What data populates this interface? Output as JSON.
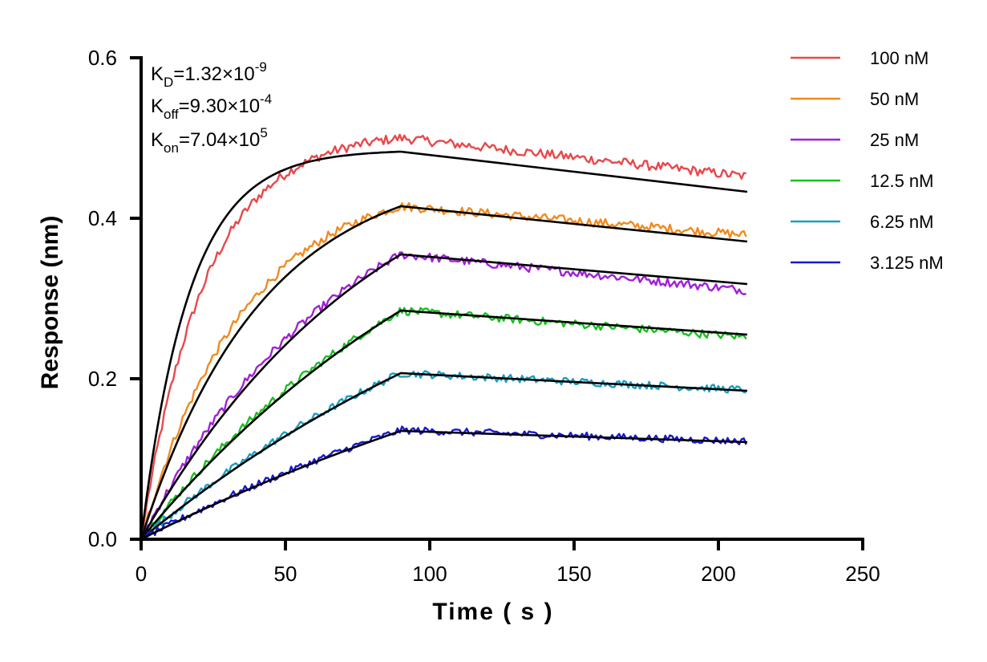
{
  "chart_data": {
    "type": "line",
    "title": "",
    "xlabel": "Time ( s )",
    "ylabel": "Response (nm)",
    "xlim": [
      0,
      250
    ],
    "ylim": [
      0,
      0.6
    ],
    "x_ticks": [
      "0",
      "50",
      "100",
      "150",
      "200",
      "250"
    ],
    "y_ticks": [
      "0.0",
      "0.2",
      "0.4",
      "0.6"
    ],
    "grid": false,
    "legend_position": "top-right",
    "annotations": [
      {
        "sym": "K",
        "sub": "D",
        "val": "=1.32×10",
        "exp": "-9"
      },
      {
        "sym": "K",
        "sub": "off",
        "val": "=9.30×10",
        "exp": "-4"
      },
      {
        "sym": "K",
        "sub": "on",
        "val": "=7.04×10",
        "exp": "5"
      }
    ],
    "association_end": 90,
    "dissociation_end": 210,
    "series": [
      {
        "name": "100 nM",
        "color": "#e8484a",
        "peak": 0.5,
        "end": 0.452,
        "fit_peak": 0.483,
        "fit_end": 0.433,
        "curve_shape": 0.045
      },
      {
        "name": "50 nM",
        "color": "#f28a1e",
        "peak": 0.415,
        "end": 0.379,
        "fit_peak": 0.415,
        "fit_end": 0.371,
        "curve_shape": 0.028
      },
      {
        "name": "25 nM",
        "color": "#a020d8",
        "peak": 0.355,
        "end": 0.31,
        "fit_peak": 0.355,
        "fit_end": 0.318,
        "curve_shape": 0.014
      },
      {
        "name": "12.5 nM",
        "color": "#18c020",
        "peak": 0.285,
        "end": 0.252,
        "fit_peak": 0.285,
        "fit_end": 0.255,
        "curve_shape": 0.009
      },
      {
        "name": "6.25 nM",
        "color": "#18a0c0",
        "peak": 0.207,
        "end": 0.186,
        "fit_peak": 0.207,
        "fit_end": 0.185,
        "curve_shape": 0.007
      },
      {
        "name": "3.125 nM",
        "color": "#1818d0",
        "peak": 0.136,
        "end": 0.122,
        "fit_peak": 0.135,
        "fit_end": 0.121,
        "curve_shape": 0.005
      }
    ]
  }
}
